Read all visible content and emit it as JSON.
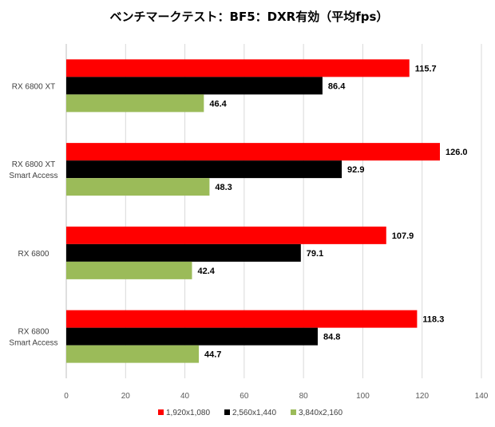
{
  "chart_data": {
    "type": "bar",
    "orientation": "horizontal",
    "title": "ベンチマークテスト：BF5：DXR有効（平均fps）",
    "categories": [
      [
        "RX 6800 XT"
      ],
      [
        "RX 6800 XT",
        "Smart Access"
      ],
      [
        "RX 6800"
      ],
      [
        "RX 6800",
        "Smart Access"
      ]
    ],
    "series": [
      {
        "name": "1,920x1,080",
        "color": "#ff0000",
        "values": [
          115.7,
          126.0,
          107.9,
          118.3
        ]
      },
      {
        "name": "2,560x1,440",
        "color": "#000000",
        "values": [
          86.4,
          92.9,
          79.1,
          84.8
        ]
      },
      {
        "name": "3,840x2,160",
        "color": "#9bbb59",
        "values": [
          46.4,
          48.3,
          42.4,
          44.7
        ]
      }
    ],
    "xlim": [
      0,
      140
    ],
    "xticks": [
      0,
      20,
      40,
      60,
      80,
      100,
      120,
      140
    ],
    "grid": true,
    "legend_position": "bottom"
  }
}
